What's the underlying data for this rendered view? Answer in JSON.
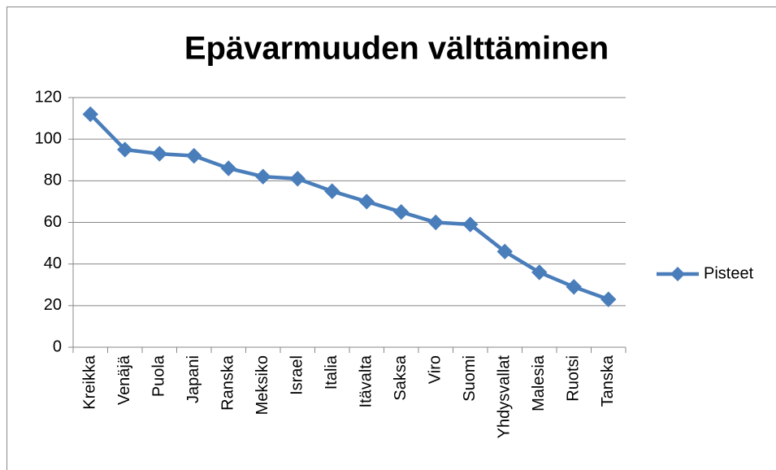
{
  "chart_data": {
    "type": "line",
    "title": "Epävarmuuden välttäminen",
    "categories": [
      "Kreikka",
      "Venäjä",
      "Puola",
      "Japani",
      "Ranska",
      "Meksiko",
      "Israel",
      "Italia",
      "Itävalta",
      "Saksa",
      "Viro",
      "Suomi",
      "Yhdysvallat",
      "Malesia",
      "Ruotsi",
      "Tanska"
    ],
    "series": [
      {
        "name": "Pisteet",
        "color": "#4a7ebb",
        "values": [
          112,
          95,
          93,
          92,
          86,
          82,
          81,
          75,
          70,
          65,
          60,
          59,
          46,
          36,
          29,
          23
        ]
      }
    ],
    "ylim": [
      0,
      120
    ],
    "yticks": [
      0,
      20,
      40,
      60,
      80,
      100,
      120
    ],
    "grid": true,
    "legend": "right"
  }
}
